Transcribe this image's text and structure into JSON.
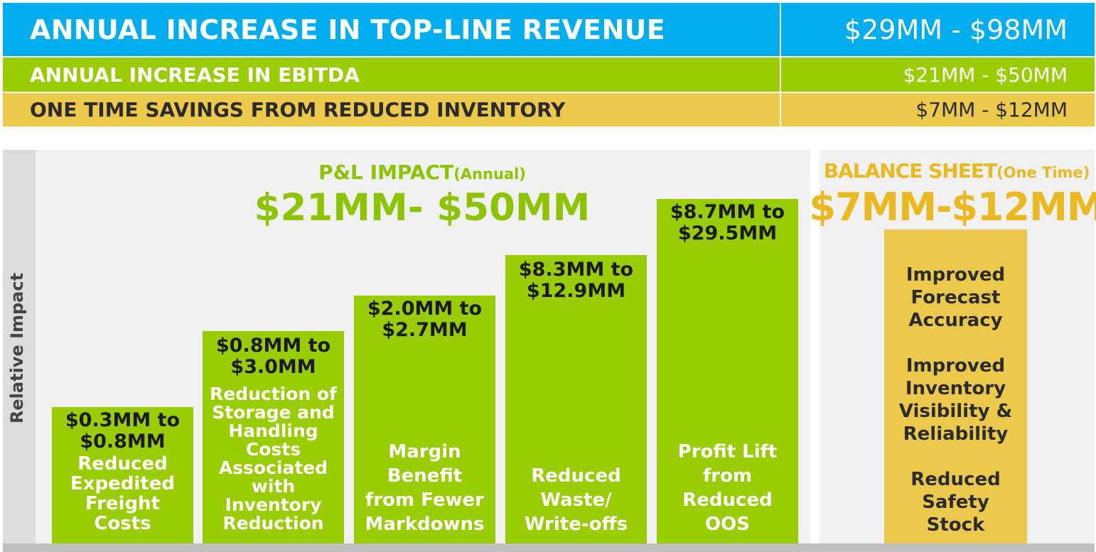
{
  "summary": {
    "revenue": {
      "label": "ANNUAL INCREASE IN TOP-LINE REVENUE",
      "value": "$29MM - $98MM",
      "color": "#00aeef"
    },
    "ebitda": {
      "label": "ANNUAL INCREASE IN EBITDA",
      "value": "$21MM - $50MM",
      "color": "#9acd00"
    },
    "inventory": {
      "label": "ONE TIME SAVINGS FROM REDUCED INVENTORY",
      "value": "$7MM - $12MM",
      "color": "#ecc94b"
    }
  },
  "pl": {
    "title": "P&L IMPACT",
    "subtitle": "(Annual)",
    "value": "$21MM- $50MM"
  },
  "balance": {
    "title": "BALANCE SHEET",
    "subtitle": "(One Time)",
    "value": "$7MM-$12MM",
    "items": [
      "Improved\nForecast\nAccuracy",
      "Improved\nInventory\nVisibility &\nReliability",
      "Reduced\nSafety\nStock"
    ]
  },
  "chart_data": {
    "type": "bar",
    "ylabel": "Relative Impact",
    "categories": [
      "Reduced Expedited Freight Costs",
      "Reduction of Storage and Handling Costs Associated with Inventory Reduction",
      "Margin Benefit from Fewer Markdowns",
      "Reduced Waste/ Write-offs",
      "Profit Lift from Reduced OOS"
    ],
    "value_labels": [
      "$0.3MM to $0.8MM",
      "$0.8MM to $3.0MM",
      "$2.0MM to $2.7MM",
      "$8.3MM to $12.9MM",
      "$8.7MM to $29.5MM"
    ],
    "relative_height": [
      0.4,
      0.6,
      0.7,
      0.8,
      0.9
    ],
    "color": "#9acd00"
  }
}
